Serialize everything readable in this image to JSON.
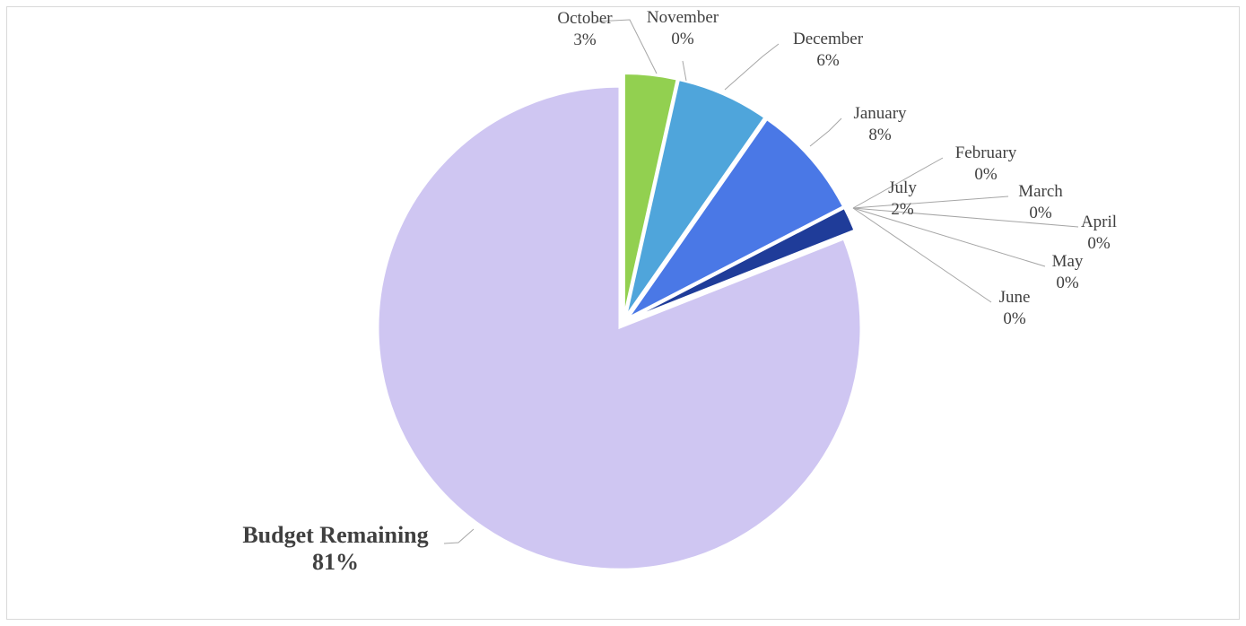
{
  "chart_data": {
    "type": "pie",
    "title": "",
    "exploded": true,
    "slices": [
      {
        "name": "October",
        "value": 3.5,
        "percent_label": "3%",
        "color": "#92d050"
      },
      {
        "name": "November",
        "value": 0,
        "percent_label": "0%",
        "color": "#7fb2e5"
      },
      {
        "name": "December",
        "value": 6.2,
        "percent_label": "6%",
        "color": "#4fa5db"
      },
      {
        "name": "January",
        "value": 7.7,
        "percent_label": "8%",
        "color": "#4a78e6"
      },
      {
        "name": "February",
        "value": 0,
        "percent_label": "0%",
        "color": "#8faadc"
      },
      {
        "name": "March",
        "value": 0,
        "percent_label": "0%",
        "color": "#2f5597"
      },
      {
        "name": "April",
        "value": 0,
        "percent_label": "0%",
        "color": "#203864"
      },
      {
        "name": "May",
        "value": 0,
        "percent_label": "0%",
        "color": "#5b9bd5"
      },
      {
        "name": "June",
        "value": 0,
        "percent_label": "0%",
        "color": "#9dc3e6"
      },
      {
        "name": "July",
        "value": 1.6,
        "percent_label": "2%",
        "color": "#1f3c99"
      },
      {
        "name": "Budget Remaining",
        "value": 81,
        "percent_label": "81%",
        "color": "#cfc6f2",
        "bold": true
      }
    ]
  }
}
